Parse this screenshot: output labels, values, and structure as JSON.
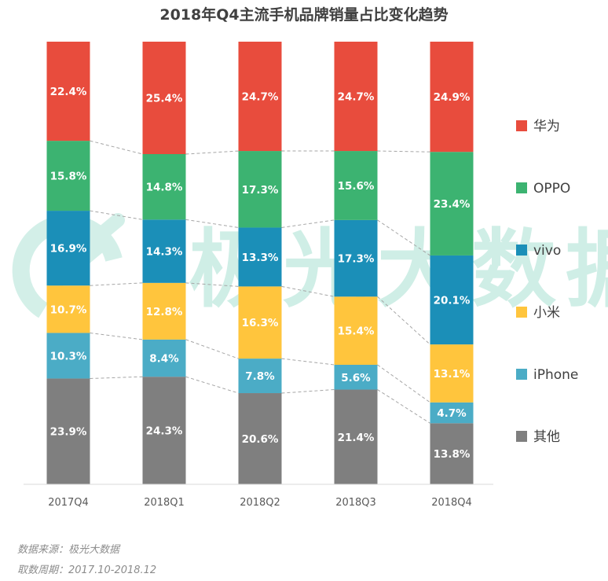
{
  "chart_data": {
    "type": "bar",
    "stacked": true,
    "percent": true,
    "title": "2018年Q4主流手机品牌销量占比变化趋势",
    "categories": [
      "2017Q4",
      "2018Q1",
      "2018Q2",
      "2018Q3",
      "2018Q4"
    ],
    "series": [
      {
        "name": "其他",
        "color": "#7f7f7f",
        "values": [
          23.9,
          24.3,
          20.6,
          21.4,
          13.8
        ],
        "labels": [
          "23.9%",
          "24.3%",
          "20.6%",
          "21.4%",
          "13.8%"
        ]
      },
      {
        "name": "iPhone",
        "color": "#4bacc6",
        "values": [
          10.3,
          8.4,
          7.8,
          5.6,
          4.7
        ],
        "labels": [
          "10.3%",
          "8.4%",
          "7.8%",
          "5.6%",
          "4.7%"
        ]
      },
      {
        "name": "小米",
        "color": "#ffc53d",
        "values": [
          10.7,
          12.8,
          16.3,
          15.4,
          13.1
        ],
        "labels": [
          "10.7%",
          "12.8%",
          "16.3%",
          "15.4%",
          "13.1%"
        ]
      },
      {
        "name": "vivo",
        "color": "#1b8fb8",
        "values": [
          16.9,
          14.3,
          13.3,
          17.3,
          20.1
        ],
        "labels": [
          "16.9%",
          "14.3%",
          "13.3%",
          "17.3%",
          "20.1%"
        ]
      },
      {
        "name": "OPPO",
        "color": "#3cb371",
        "values": [
          15.8,
          14.8,
          17.3,
          15.6,
          23.4
        ],
        "labels": [
          "15.8%",
          "14.8%",
          "17.3%",
          "15.6%",
          "23.4%"
        ]
      },
      {
        "name": "华为",
        "color": "#e84c3d",
        "values": [
          22.4,
          25.4,
          24.7,
          24.7,
          24.9
        ],
        "labels": [
          "22.4%",
          "25.4%",
          "24.7%",
          "24.7%",
          "24.9%"
        ]
      }
    ],
    "legend_position": "right",
    "connector_lines": "dashed",
    "grid": false
  },
  "watermark": {
    "text": "极光大数据",
    "color": "#cfeee6"
  },
  "footer": {
    "source": "数据来源：极光大数据",
    "period": "取数周期：2017.10-2018.12"
  }
}
